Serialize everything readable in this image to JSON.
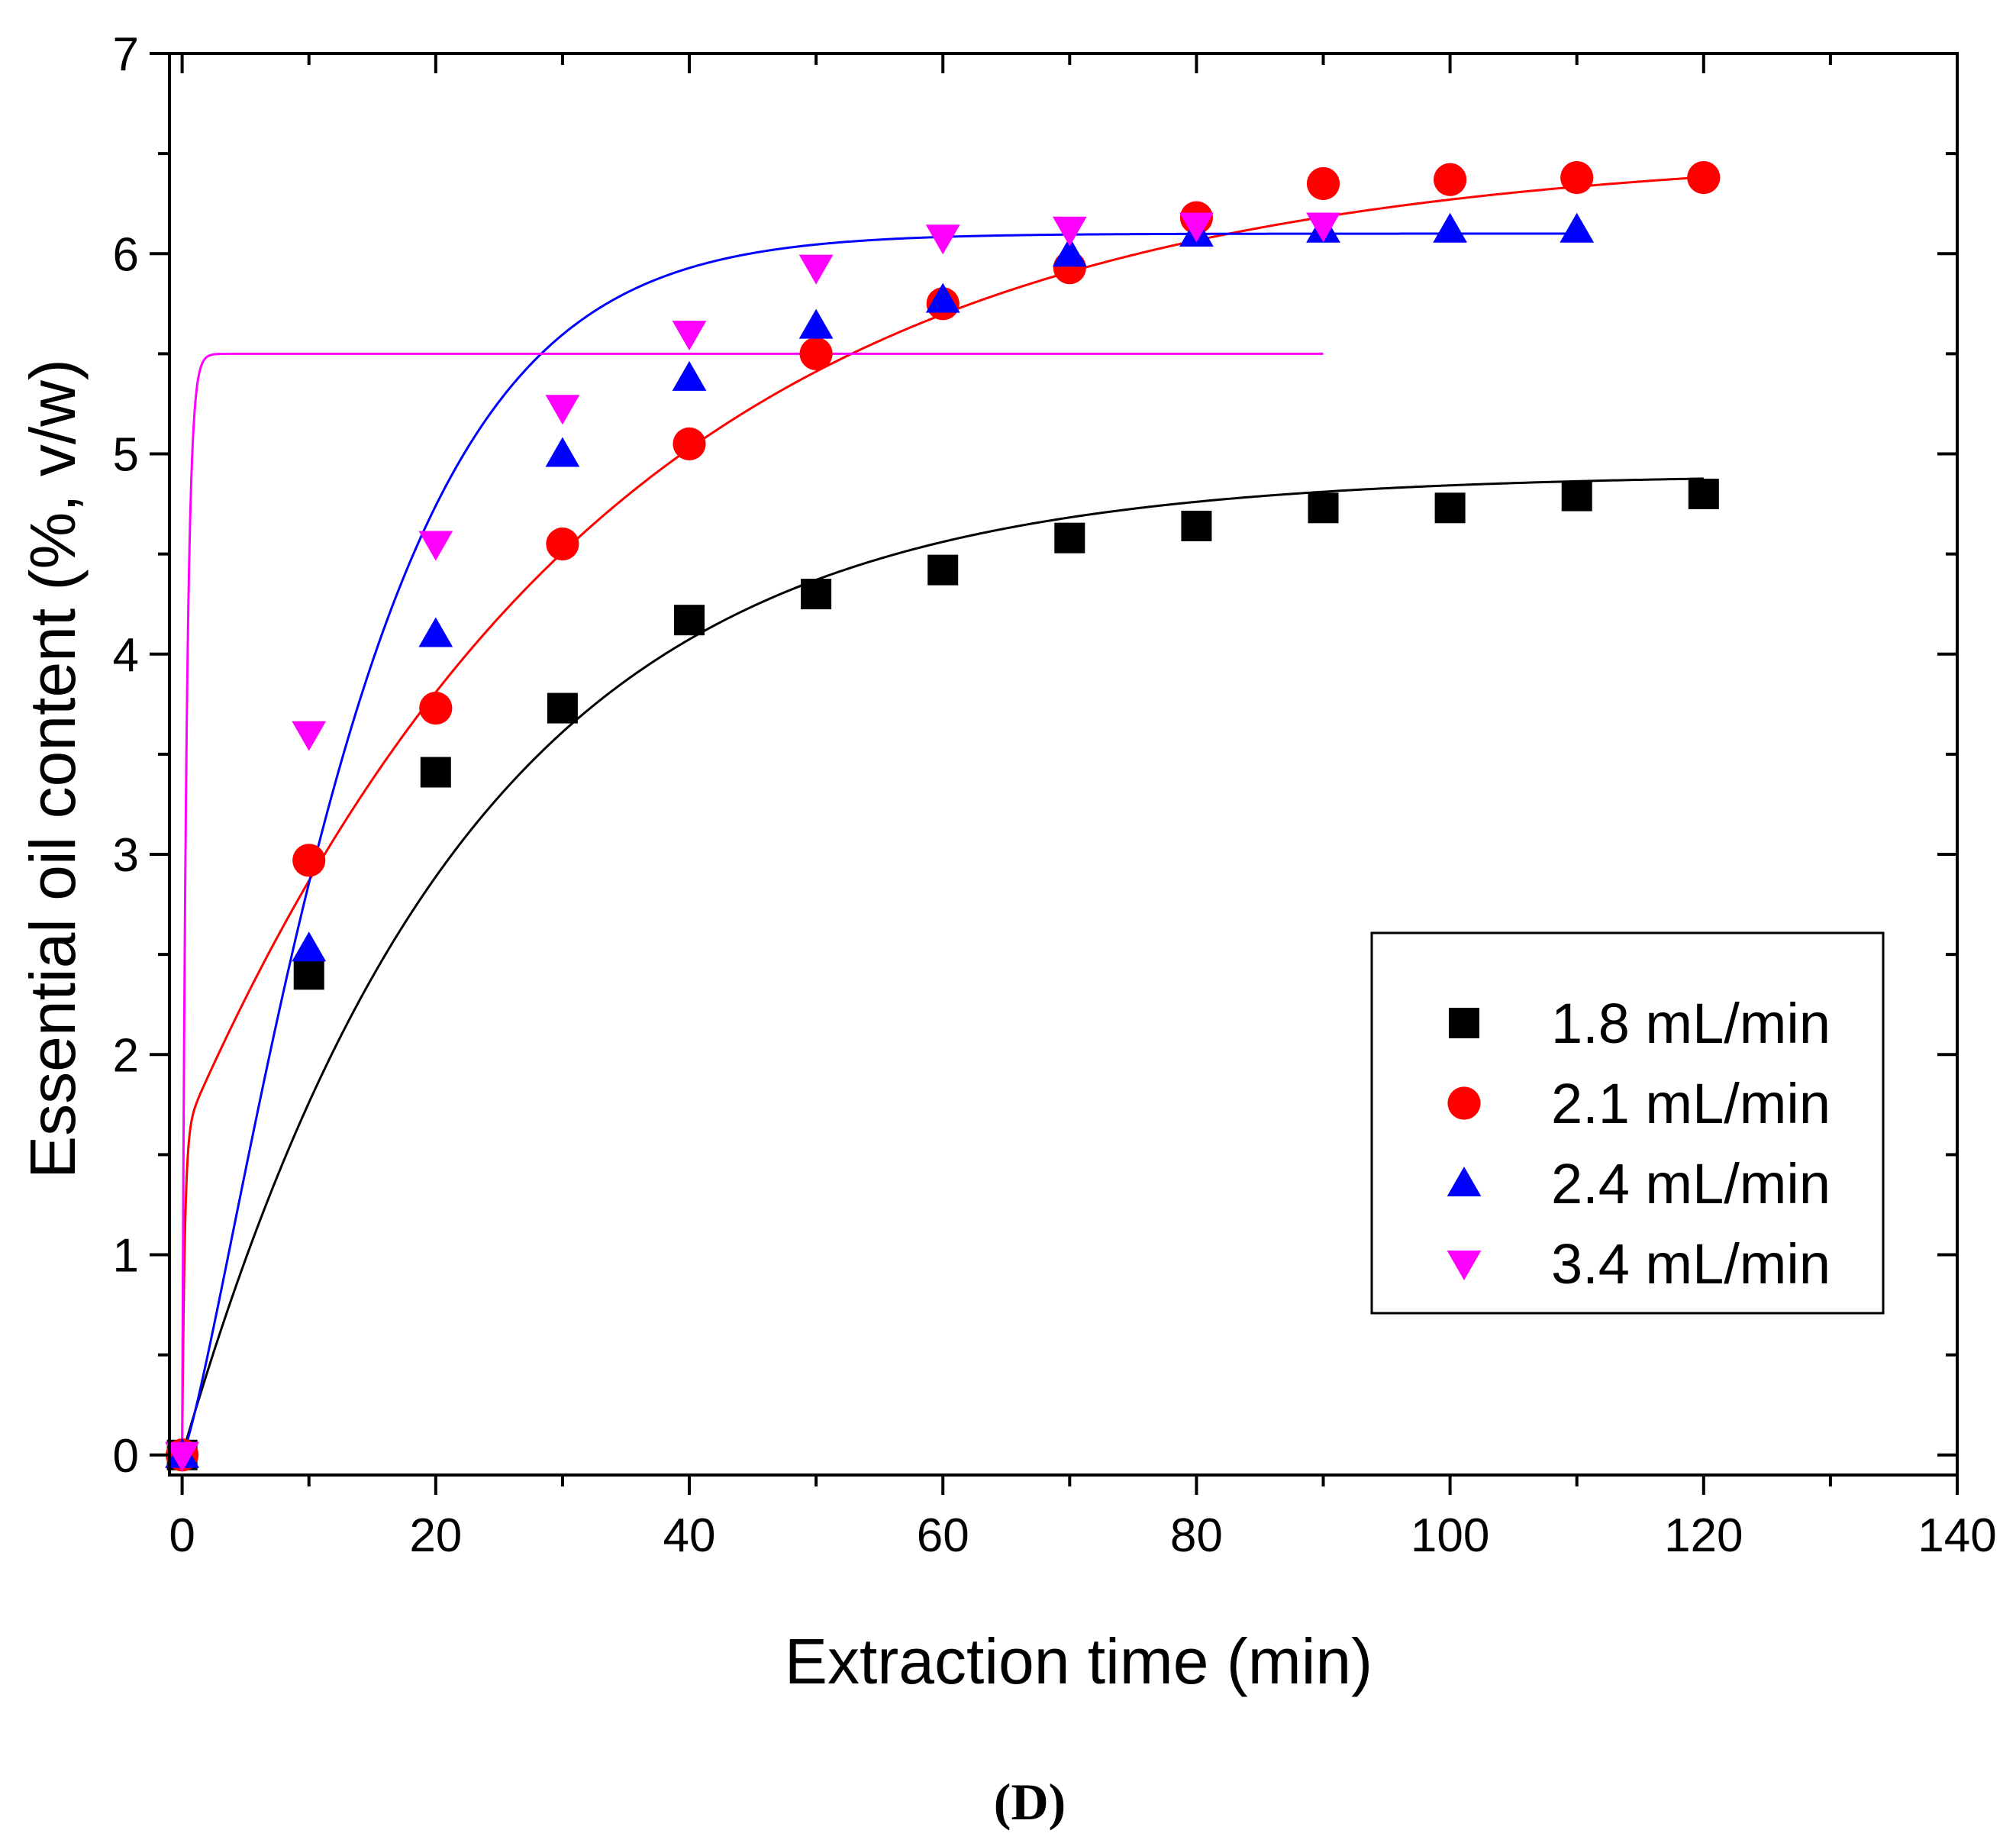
{
  "chart_data": {
    "type": "scatter",
    "title": "",
    "xlabel": "Extraction time (min)",
    "ylabel": "Essential oil content (%, v/w)",
    "xlim": [
      -1,
      140
    ],
    "ylim": [
      -0.1,
      7
    ],
    "xticks": [
      0,
      20,
      40,
      60,
      80,
      100,
      120,
      140
    ],
    "yticks": [
      0,
      1,
      2,
      3,
      4,
      5,
      6,
      7
    ],
    "legend_position": "lower-right",
    "panel_label": "(D)",
    "series": [
      {
        "name": "1.8 mL/min",
        "color": "#000000",
        "marker": "square",
        "x": [
          0,
          10,
          20,
          30,
          40,
          50,
          60,
          70,
          80,
          90,
          100,
          110,
          120
        ],
        "y": [
          0,
          2.4,
          3.41,
          3.73,
          4.17,
          4.3,
          4.42,
          4.58,
          4.64,
          4.73,
          4.73,
          4.79,
          4.8
        ],
        "fit": {
          "model": "a*(1-exp(-k*t))",
          "a": 4.9,
          "k": 0.0445,
          "t_max": 120
        }
      },
      {
        "name": "2.1 mL/min",
        "color": "#ff0000",
        "marker": "circle",
        "x": [
          0,
          10,
          20,
          30,
          40,
          50,
          60,
          70,
          80,
          90,
          100,
          110,
          120
        ],
        "y": [
          0,
          2.97,
          3.73,
          4.55,
          5.05,
          5.5,
          5.75,
          5.93,
          6.18,
          6.35,
          6.37,
          6.38,
          6.38
        ],
        "fit": {
          "model": "b*(1-exp(-k2*t)) + c*(1-exp(-k*t))",
          "b": 1.6,
          "k2": 5,
          "c": 4.92,
          "k": 0.0298,
          "t_max": 120
        }
      },
      {
        "name": "2.4 mL/min",
        "color": "#0000ff",
        "marker": "triangle-up",
        "x": [
          0,
          10,
          20,
          30,
          40,
          50,
          60,
          70,
          80,
          90,
          100,
          110
        ],
        "y": [
          0,
          2.53,
          4.1,
          5.0,
          5.38,
          5.64,
          5.77,
          6.0,
          6.1,
          6.12,
          6.12,
          6.12
        ],
        "fit": {
          "model": "a*(1-exp(-k*t^n))",
          "a": 6.1,
          "k": 0.0355,
          "n": 1.25,
          "t_max": 110
        }
      },
      {
        "name": "3.4 mL/min",
        "color": "#ff00ff",
        "marker": "triangle-down",
        "x": [
          0,
          10,
          20,
          30,
          40,
          50,
          60,
          70,
          80,
          90
        ],
        "y": [
          0,
          3.6,
          4.55,
          5.23,
          5.6,
          5.93,
          6.08,
          6.12,
          6.14,
          6.14
        ],
        "fit": {
          "model": "a*(1-exp(-k*t))",
          "a": 5.5,
          "k": 3.0,
          "t_max": 90
        }
      }
    ]
  }
}
